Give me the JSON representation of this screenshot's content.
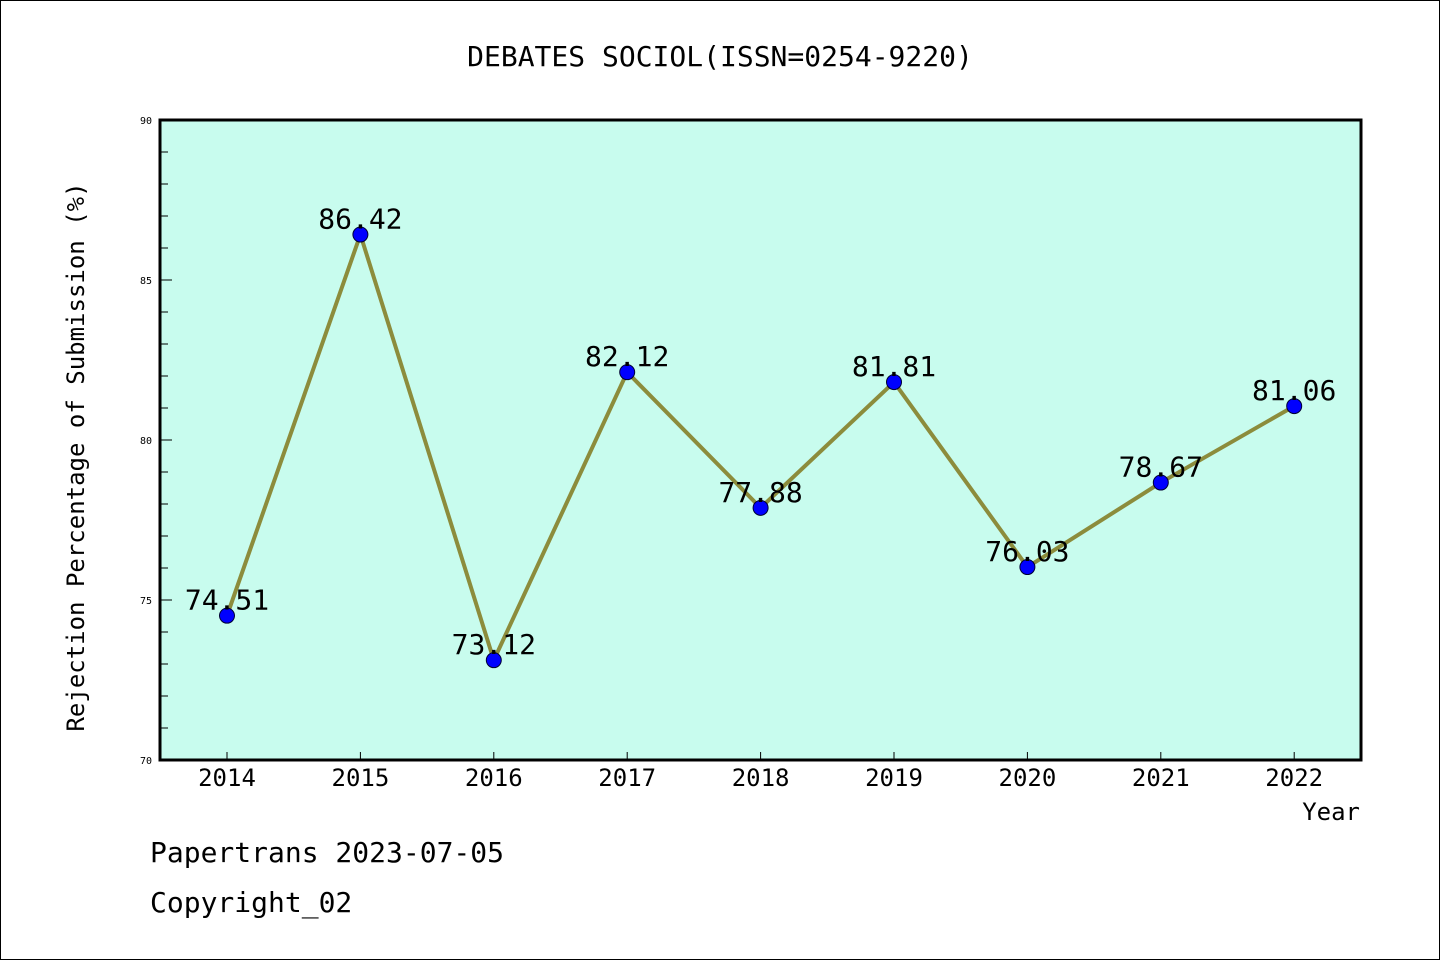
{
  "chart_data": {
    "type": "line",
    "title": "DEBATES SOCIOL(ISSN=0254-9220)",
    "xlabel": "Year",
    "ylabel": "Rejection Percentage of Submission (%)",
    "categories": [
      "2014",
      "2015",
      "2016",
      "2017",
      "2018",
      "2019",
      "2020",
      "2021",
      "2022"
    ],
    "values": [
      74.51,
      86.42,
      73.12,
      82.12,
      77.88,
      81.81,
      76.03,
      78.67,
      81.06
    ],
    "data_labels": [
      "74.51",
      "86.42",
      "73.12",
      "82.12",
      "77.88",
      "81.81",
      "76.03",
      "78.67",
      "81.06"
    ],
    "ylim": [
      70,
      90
    ],
    "yticks": [
      "70",
      "75",
      "80",
      "85",
      "90"
    ],
    "grid": false,
    "colors": {
      "plot_background": "#c8fcee",
      "line": "#8c8c3c",
      "marker": "#0000ff"
    }
  },
  "footer": {
    "line1": "Papertrans 2023-07-05",
    "line2": "Copyright_02"
  }
}
